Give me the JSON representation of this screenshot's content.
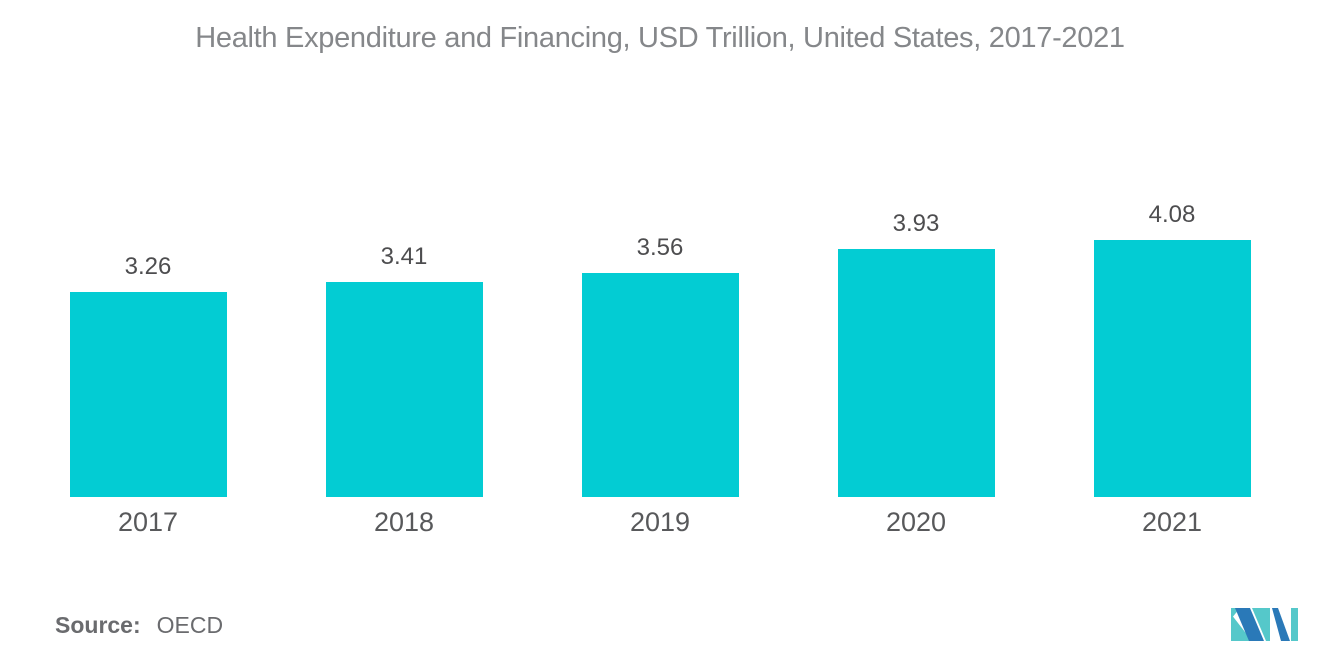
{
  "title": "Health Expenditure and Financing, USD Trillion, United States, 2017-2021",
  "source": {
    "label": "Source:",
    "value": "OECD"
  },
  "logo": {
    "name": "mordor-intelligence-logo"
  },
  "colors": {
    "bar": "#03CCD3",
    "title_text": "#85878A",
    "value_text": "#4D4D4F",
    "year_text": "#58595B",
    "source_text": "#6A6B6E",
    "logo_blue": "#2A79B8",
    "logo_teal": "#55C8CA"
  },
  "chart_data": {
    "type": "bar",
    "title": "Health Expenditure and Financing, USD Trillion, United States, 2017-2021",
    "categories": [
      "2017",
      "2018",
      "2019",
      "2020",
      "2021"
    ],
    "values": [
      3.26,
      3.41,
      3.56,
      3.93,
      4.08
    ],
    "value_labels": [
      "3.26",
      "3.41",
      "3.56",
      "3.93",
      "4.08"
    ],
    "xlabel": "",
    "ylabel": "",
    "ylim": [
      0,
      4.5
    ],
    "grid": false,
    "legend": "none",
    "axes_visible": false,
    "bar_label_position": "above"
  }
}
